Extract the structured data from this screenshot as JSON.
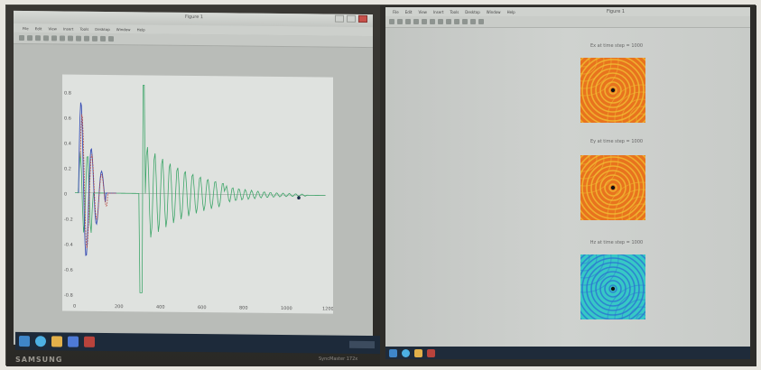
{
  "left_window": {
    "title": "Figure 1",
    "menu": [
      "File",
      "Edit",
      "View",
      "Insert",
      "Tools",
      "Desktop",
      "Window",
      "Help"
    ],
    "y_tick_labels": [
      "0.8",
      "0.6",
      "0.4",
      "0.2",
      "0",
      "-0.2",
      "-0.4",
      "-0.6",
      "-0.8"
    ],
    "x_tick_labels": [
      "0",
      "200",
      "400",
      "600",
      "800",
      "1000",
      "1200"
    ]
  },
  "right_window": {
    "title": "Figure 1",
    "menu": [
      "File",
      "Edit",
      "View",
      "Insert",
      "Tools",
      "Desktop",
      "Window",
      "Help"
    ],
    "panels": [
      {
        "title": "Ex at time step = 1000",
        "colormap": "orange"
      },
      {
        "title": "Ey at time step = 1000",
        "colormap": "orange"
      },
      {
        "title": "Hz at time step = 1000",
        "colormap": "cyan"
      }
    ]
  },
  "monitor": {
    "brand": "SAMSUNG",
    "model": "SyncMaster 172x"
  },
  "colors": {
    "trace_green": "#3fa66a",
    "trace_blue": "#3a4fb4",
    "trace_red": "#b8433c",
    "field_orange": "#e8731e",
    "field_yellow": "#f1c236",
    "field_cyan": "#37c8c6",
    "field_blue": "#2b6fd1"
  }
}
